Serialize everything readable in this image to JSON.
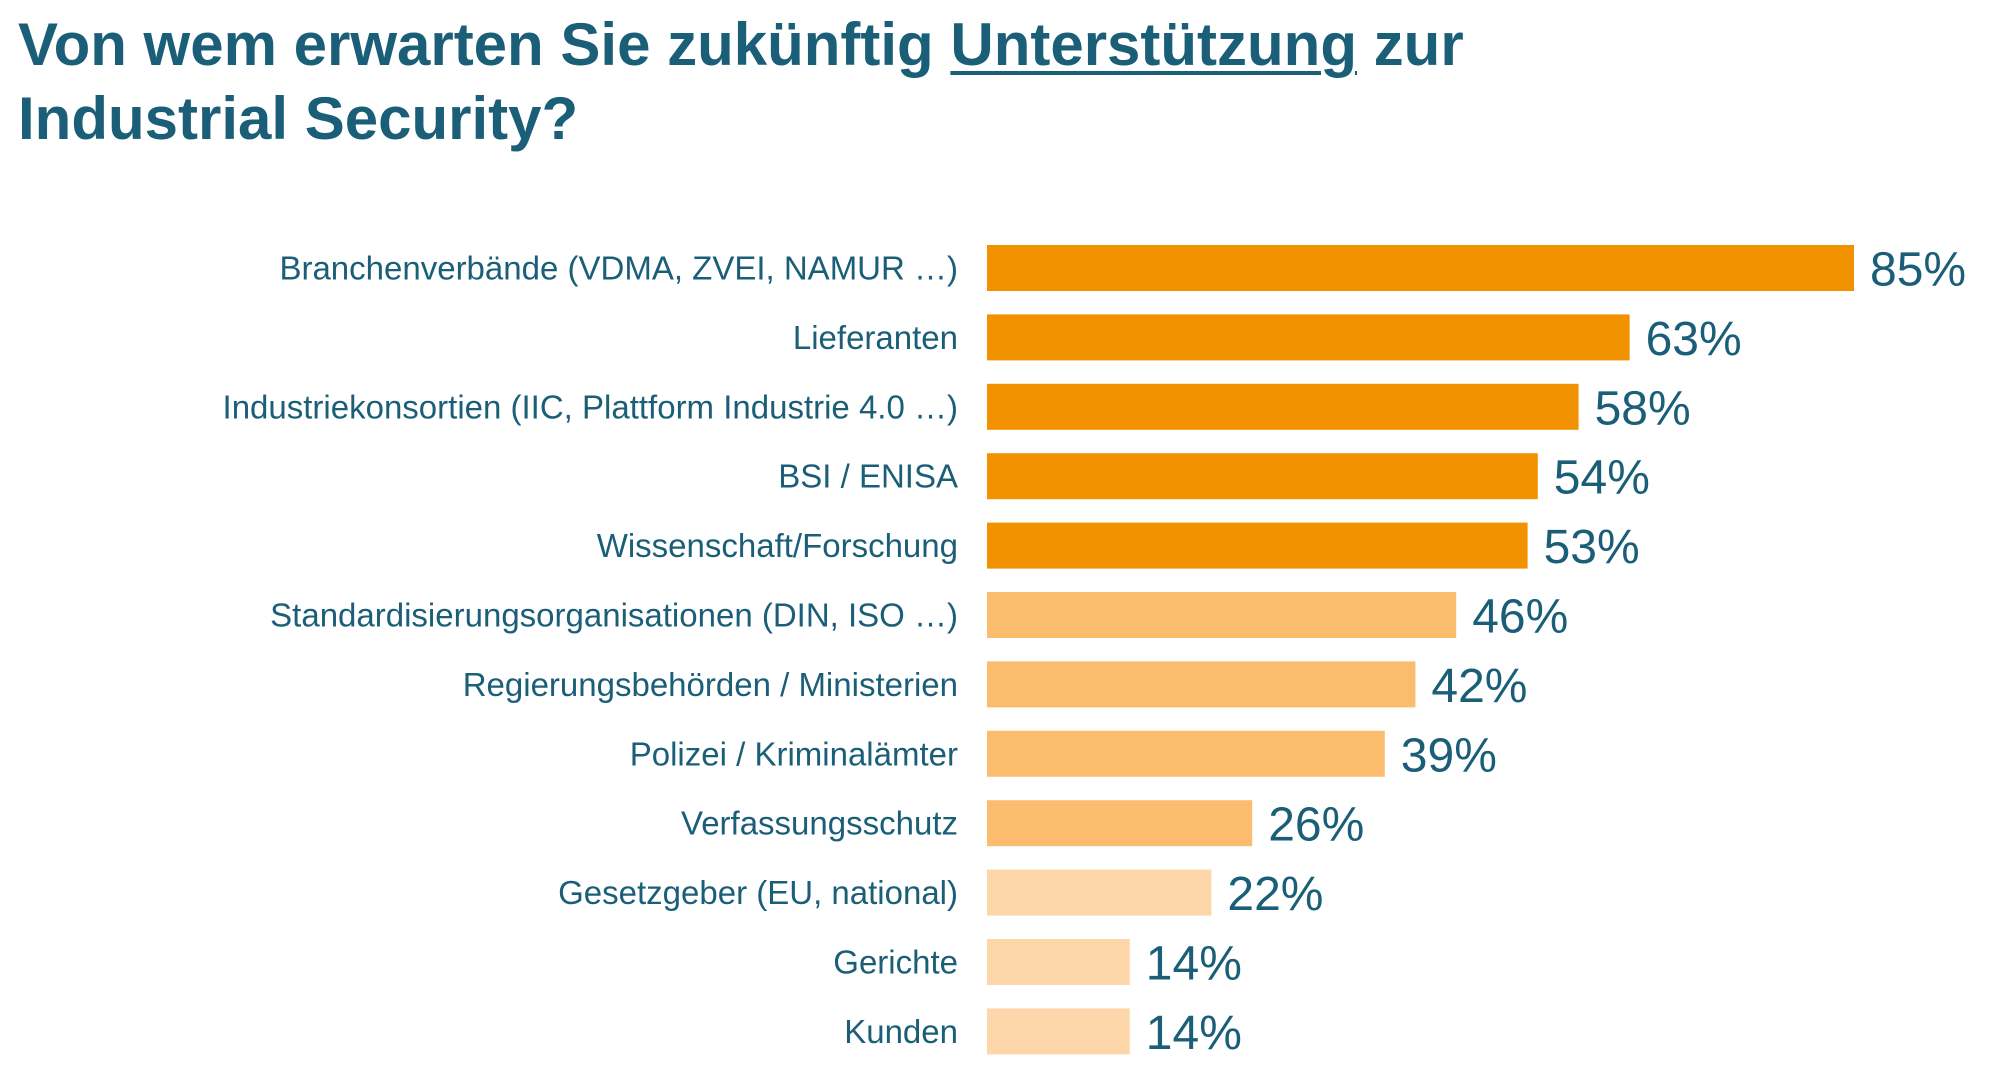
{
  "title": {
    "part1": "Von wem erwarten Sie zukünftig ",
    "emphasis": "Unterstützung",
    "part2": " zur",
    "line2": "Industrial Security?"
  },
  "colors": {
    "title": "#1b5e78",
    "dark": "#f39200",
    "medium": "#fbbd6d",
    "light": "#fdd7aa"
  },
  "chart_data": {
    "type": "bar",
    "orientation": "horizontal",
    "title": "Von wem erwarten Sie zukünftig Unterstützung zur Industrial Security?",
    "xlabel": "",
    "ylabel": "",
    "xlim": [
      0,
      100
    ],
    "grid": false,
    "legend": "none",
    "value_suffix": "%",
    "categories": [
      "Branchenverbände (VDMA, ZVEI, NAMUR …)",
      "Lieferanten",
      "Industriekonsortien (IIC, Plattform Industrie 4.0 …)",
      "BSI / ENISA",
      "Wissenschaft/Forschung",
      "Standardisierungsorganisationen (DIN, ISO …)",
      "Regierungsbehörden / Ministerien",
      "Polizei / Kriminalämter",
      "Verfassungsschutz",
      "Gesetzgeber (EU, national)",
      "Gerichte",
      "Kunden"
    ],
    "values": [
      85,
      63,
      58,
      54,
      53,
      46,
      42,
      39,
      26,
      22,
      14,
      14
    ],
    "shade": [
      "dark",
      "dark",
      "dark",
      "dark",
      "dark",
      "medium",
      "medium",
      "medium",
      "medium",
      "light",
      "light",
      "light"
    ]
  }
}
